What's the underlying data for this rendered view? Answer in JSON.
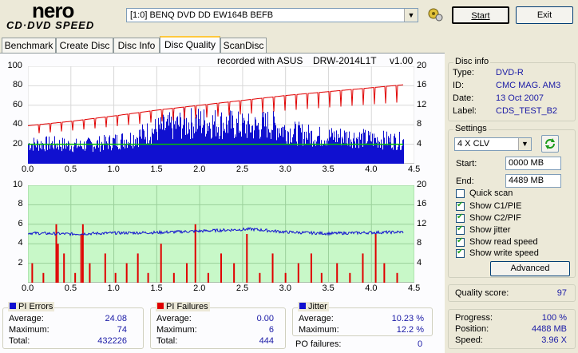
{
  "app": {
    "logo_main": "nero",
    "logo_sub": "CD·DVD SPEED",
    "drive": "[1:0]  BENQ DVD DD EW164B BEFB",
    "start_label": "Start",
    "exit_label": "Exit"
  },
  "tabs": [
    {
      "label": "Benchmark"
    },
    {
      "label": "Create Disc"
    },
    {
      "label": "Disc Info"
    },
    {
      "label": "Disc Quality",
      "active": true
    },
    {
      "label": "ScanDisc"
    }
  ],
  "chart_header": {
    "recorded_with": "recorded with ASUS",
    "drive_model": "DRW-2014L1T",
    "version": "v1.00"
  },
  "chart_data": [
    {
      "type": "area",
      "name": "PI errors / read speed",
      "x_ticks": [
        "0.0",
        "0.5",
        "1.0",
        "1.5",
        "2.0",
        "2.5",
        "3.0",
        "3.5",
        "4.0",
        "4.5"
      ],
      "xlim": [
        0,
        4.5
      ],
      "y_left_ticks": [
        "100",
        "80",
        "60",
        "40",
        "20"
      ],
      "y_right_ticks": [
        "20",
        "16",
        "12",
        "8",
        "4"
      ],
      "ylim_left": [
        0,
        100
      ],
      "ylim_right": [
        0,
        20
      ],
      "pie_profile": [
        {
          "x": 0.0,
          "y": 22
        },
        {
          "x": 0.3,
          "y": 22
        },
        {
          "x": 0.6,
          "y": 20
        },
        {
          "x": 0.9,
          "y": 23
        },
        {
          "x": 1.2,
          "y": 28
        },
        {
          "x": 1.5,
          "y": 38
        },
        {
          "x": 1.8,
          "y": 44
        },
        {
          "x": 2.0,
          "y": 46
        },
        {
          "x": 2.3,
          "y": 44
        },
        {
          "x": 2.6,
          "y": 40
        },
        {
          "x": 2.8,
          "y": 44
        },
        {
          "x": 3.1,
          "y": 34
        },
        {
          "x": 3.4,
          "y": 30
        },
        {
          "x": 3.7,
          "y": 30
        },
        {
          "x": 4.0,
          "y": 27
        },
        {
          "x": 4.2,
          "y": 26
        },
        {
          "x": 4.37,
          "y": 25
        }
      ],
      "read_speed": [
        {
          "x": 0.0,
          "y": 4.0
        },
        {
          "x": 4.37,
          "y": 4.0
        }
      ],
      "write_speed": [
        {
          "x": 0.0,
          "y": 7.8
        },
        {
          "x": 0.5,
          "y": 8.7
        },
        {
          "x": 1.0,
          "y": 9.8
        },
        {
          "x": 1.5,
          "y": 11.0
        },
        {
          "x": 2.0,
          "y": 12.0
        },
        {
          "x": 2.5,
          "y": 13.0
        },
        {
          "x": 3.0,
          "y": 14.0
        },
        {
          "x": 3.5,
          "y": 14.8
        },
        {
          "x": 4.0,
          "y": 15.6
        },
        {
          "x": 4.37,
          "y": 16.2
        }
      ],
      "colors": {
        "pie": "#1010d0",
        "read": "#00c000",
        "write": "#e00000"
      }
    },
    {
      "type": "bar",
      "name": "PI failures / jitter",
      "x_ticks": [
        "0.0",
        "0.5",
        "1.0",
        "1.5",
        "2.0",
        "2.5",
        "3.0",
        "3.5",
        "4.0",
        "4.5"
      ],
      "xlim": [
        0,
        4.5
      ],
      "y_left_ticks": [
        "10",
        "8",
        "6",
        "4",
        "2"
      ],
      "y_right_ticks": [
        "20",
        "16",
        "12",
        "8",
        "4"
      ],
      "ylim_left": [
        0,
        10
      ],
      "ylim_right": [
        0,
        20
      ],
      "jitter_profile": [
        {
          "x": 0.0,
          "y": 10.2
        },
        {
          "x": 0.5,
          "y": 10.0
        },
        {
          "x": 1.0,
          "y": 10.2
        },
        {
          "x": 1.5,
          "y": 10.3
        },
        {
          "x": 2.0,
          "y": 10.6
        },
        {
          "x": 2.6,
          "y": 11.0
        },
        {
          "x": 3.0,
          "y": 10.4
        },
        {
          "x": 3.5,
          "y": 10.1
        },
        {
          "x": 4.0,
          "y": 10.3
        },
        {
          "x": 4.37,
          "y": 10.4
        }
      ],
      "pif_bars": [
        {
          "x": 0.05,
          "y": 2
        },
        {
          "x": 0.18,
          "y": 1
        },
        {
          "x": 0.33,
          "y": 6
        },
        {
          "x": 0.35,
          "y": 4
        },
        {
          "x": 0.42,
          "y": 3
        },
        {
          "x": 0.55,
          "y": 1
        },
        {
          "x": 0.62,
          "y": 5
        },
        {
          "x": 0.64,
          "y": 6
        },
        {
          "x": 0.72,
          "y": 2
        },
        {
          "x": 0.9,
          "y": 3
        },
        {
          "x": 1.02,
          "y": 1
        },
        {
          "x": 1.15,
          "y": 2
        },
        {
          "x": 1.28,
          "y": 3
        },
        {
          "x": 1.4,
          "y": 1
        },
        {
          "x": 1.55,
          "y": 4
        },
        {
          "x": 1.7,
          "y": 1
        },
        {
          "x": 1.85,
          "y": 2
        },
        {
          "x": 1.95,
          "y": 6
        },
        {
          "x": 2.1,
          "y": 1
        },
        {
          "x": 2.25,
          "y": 3
        },
        {
          "x": 2.4,
          "y": 2
        },
        {
          "x": 2.55,
          "y": 5
        },
        {
          "x": 2.7,
          "y": 1
        },
        {
          "x": 2.85,
          "y": 3
        },
        {
          "x": 3.0,
          "y": 1
        },
        {
          "x": 3.15,
          "y": 2
        },
        {
          "x": 3.3,
          "y": 3
        },
        {
          "x": 3.42,
          "y": 1
        },
        {
          "x": 3.6,
          "y": 2
        },
        {
          "x": 3.75,
          "y": 1
        },
        {
          "x": 3.9,
          "y": 3
        },
        {
          "x": 4.05,
          "y": 5
        },
        {
          "x": 4.15,
          "y": 2
        },
        {
          "x": 4.3,
          "y": 1
        }
      ],
      "colors": {
        "pif": "#e00000",
        "jitter": "#1010d0",
        "bg": "#c8f8c8"
      }
    }
  ],
  "disc_info": {
    "title": "Disc info",
    "rows": [
      {
        "key": "Type:",
        "value": "DVD-R"
      },
      {
        "key": "ID:",
        "value": "CMC MAG. AM3"
      },
      {
        "key": "Date:",
        "value": "13 Oct 2007"
      },
      {
        "key": "Label:",
        "value": "CDS_TEST_B2"
      }
    ]
  },
  "settings": {
    "title": "Settings",
    "speed": "4 X CLV",
    "start_label": "Start:",
    "start_value": "0000 MB",
    "end_label": "End:",
    "end_value": "4489 MB",
    "checks": [
      {
        "label": "Quick scan",
        "checked": false
      },
      {
        "label": "Show C1/PIE",
        "checked": true
      },
      {
        "label": "Show C2/PIF",
        "checked": true
      },
      {
        "label": "Show jitter",
        "checked": true
      },
      {
        "label": "Show read speed",
        "checked": true
      },
      {
        "label": "Show write speed",
        "checked": true
      }
    ],
    "advanced_label": "Advanced"
  },
  "quality": {
    "label": "Quality score:",
    "value": "97"
  },
  "pi_errors": {
    "title": "PI Errors",
    "average_label": "Average:",
    "average": "24.08",
    "maximum_label": "Maximum:",
    "maximum": "74",
    "total_label": "Total:",
    "total": "432226",
    "color": "#1010d0"
  },
  "pi_failures": {
    "title": "PI Failures",
    "average_label": "Average:",
    "average": "0.00",
    "maximum_label": "Maximum:",
    "maximum": "6",
    "total_label": "Total:",
    "total": "444",
    "color": "#e00000"
  },
  "jitter": {
    "title": "Jitter",
    "average_label": "Average:",
    "average": "10.23 %",
    "maximum_label": "Maximum:",
    "maximum": "12.2 %",
    "po_label": "PO failures:",
    "po": "0",
    "color": "#1010d0"
  },
  "progress": {
    "progress_label": "Progress:",
    "progress": "100 %",
    "position_label": "Position:",
    "position": "4488 MB",
    "speed_label": "Speed:",
    "speed": "3.96 X"
  }
}
